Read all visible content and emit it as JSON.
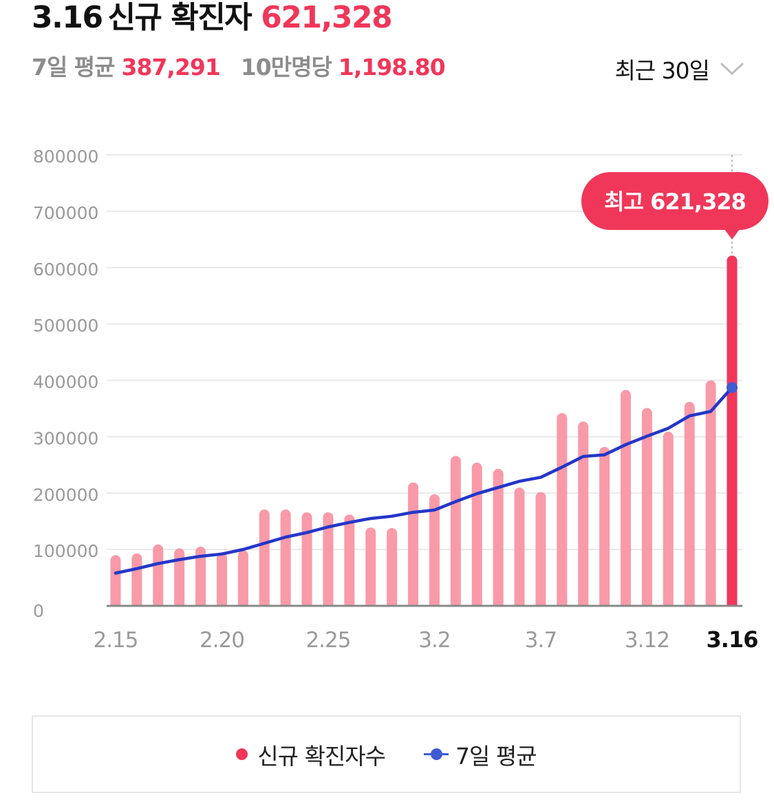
{
  "header": {
    "date": "3.16",
    "label": "신규 확진자",
    "count": "621,328"
  },
  "stats": {
    "avg_label": "7일 평균",
    "avg_value": "387,291",
    "per100k_label": "10만명당",
    "per100k_value": "1,198.80"
  },
  "period_select": {
    "label": "최근 30일",
    "icon": "chevron-down-icon"
  },
  "colors": {
    "accent": "#f0375a",
    "bar": "#f99aa8",
    "bar_highlight": "#f0375a",
    "avg_line": "#2436c9",
    "grid": "#e9e9e9",
    "axis": "#9a9a9a"
  },
  "chart_data": {
    "type": "bar",
    "title": "",
    "xlabel": "",
    "ylabel": "",
    "ylim": [
      0,
      800000
    ],
    "yticks": [
      0,
      100000,
      200000,
      300000,
      400000,
      500000,
      600000,
      700000,
      800000
    ],
    "grid": true,
    "legend_position": "bottom",
    "categories": [
      "2.15",
      "2.16",
      "2.17",
      "2.18",
      "2.19",
      "2.20",
      "2.21",
      "2.22",
      "2.23",
      "2.24",
      "2.25",
      "2.26",
      "2.27",
      "2.28",
      "3.1",
      "3.2",
      "3.3",
      "3.4",
      "3.5",
      "3.6",
      "3.7",
      "3.8",
      "3.9",
      "3.10",
      "3.11",
      "3.12",
      "3.13",
      "3.14",
      "3.15",
      "3.16"
    ],
    "xtick_labels": [
      "2.15",
      "2.20",
      "2.25",
      "3.2",
      "3.7",
      "3.12",
      "3.16"
    ],
    "highlight_category": "3.16",
    "series": [
      {
        "name": "신규 확진자수",
        "kind": "bar",
        "values": [
          90000,
          93000,
          109000,
          102000,
          105000,
          95000,
          99000,
          171000,
          171000,
          166000,
          166000,
          162000,
          139000,
          138000,
          219000,
          198000,
          266000,
          254000,
          243000,
          210000,
          202000,
          342000,
          327000,
          282000,
          383000,
          351000,
          309000,
          362000,
          400000,
          621328
        ]
      },
      {
        "name": "7일 평균",
        "kind": "line",
        "values": [
          58000,
          66000,
          75000,
          82000,
          88000,
          92000,
          100000,
          111000,
          122000,
          130000,
          140000,
          148000,
          155000,
          159000,
          166000,
          170000,
          185000,
          199000,
          210000,
          221000,
          228000,
          246000,
          265000,
          268000,
          286000,
          301000,
          315000,
          337000,
          345000,
          387291
        ]
      }
    ],
    "annotation": {
      "text": "최고 621,328",
      "category": "3.16"
    }
  }
}
